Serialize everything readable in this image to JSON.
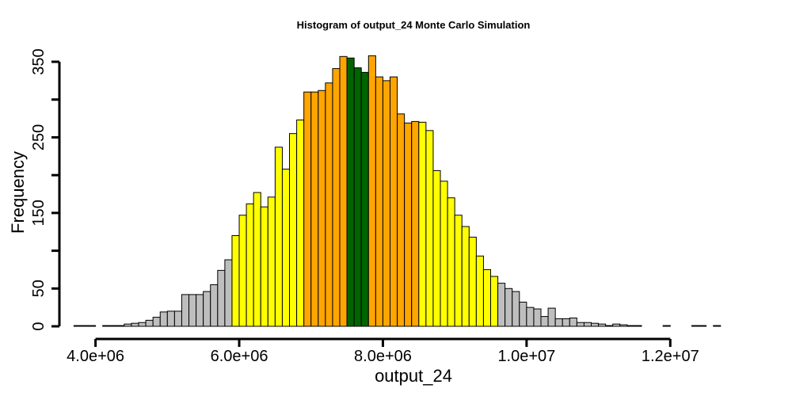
{
  "chart_data": {
    "type": "bar",
    "title": "Histogram of  output_24  Monte Carlo Simulation",
    "xlabel": "output_24",
    "ylabel": "Frequency",
    "x_ticks": [
      {
        "value": 4000000,
        "label": "4.0e+06"
      },
      {
        "value": 6000000,
        "label": "6.0e+06"
      },
      {
        "value": 8000000,
        "label": "8.0e+06"
      },
      {
        "value": 10000000,
        "label": "1.0e+07"
      },
      {
        "value": 12000000,
        "label": "1.2e+07"
      }
    ],
    "y_ticks": [
      {
        "value": 0,
        "label": "0"
      },
      {
        "value": 50,
        "label": "50"
      },
      {
        "value": 100,
        "label": ""
      },
      {
        "value": 150,
        "label": "150"
      },
      {
        "value": 200,
        "label": ""
      },
      {
        "value": 250,
        "label": "250"
      },
      {
        "value": 300,
        "label": ""
      },
      {
        "value": 350,
        "label": "350"
      }
    ],
    "xlim": [
      3850000,
      13000000
    ],
    "ylim": [
      0,
      350
    ],
    "bin_start": 3700000,
    "bin_width": 100000,
    "counts": [
      1,
      1,
      1,
      0,
      1,
      1,
      1,
      3,
      4,
      5,
      8,
      12,
      19,
      20,
      20,
      42,
      42,
      42,
      46,
      55,
      74,
      88,
      120,
      147,
      162,
      177,
      158,
      171,
      237,
      208,
      255,
      273,
      310,
      310,
      312,
      322,
      341,
      357,
      355,
      342,
      336,
      358,
      330,
      325,
      330,
      281,
      269,
      271,
      270,
      259,
      206,
      192,
      170,
      147,
      132,
      118,
      93,
      75,
      66,
      57,
      50,
      46,
      32,
      25,
      23,
      13,
      24,
      10,
      10,
      11,
      5,
      5,
      4,
      3,
      1,
      3,
      2,
      1,
      1,
      0,
      0,
      0,
      1,
      0,
      0,
      0,
      1,
      1,
      0,
      1
    ],
    "colors": {
      "tail": "#bebebe",
      "yellow": "#ffff00",
      "orange": "#ffa500",
      "center": "#006400"
    },
    "color_bands": [
      {
        "from": 3700000,
        "to": 5900000,
        "color": "tail"
      },
      {
        "from": 5900000,
        "to": 6900000,
        "color": "yellow"
      },
      {
        "from": 6900000,
        "to": 7500000,
        "color": "orange"
      },
      {
        "from": 7500000,
        "to": 7800000,
        "color": "center"
      },
      {
        "from": 7800000,
        "to": 8500000,
        "color": "orange"
      },
      {
        "from": 8500000,
        "to": 9600000,
        "color": "yellow"
      },
      {
        "from": 9600000,
        "to": 13000000,
        "color": "tail"
      }
    ]
  }
}
